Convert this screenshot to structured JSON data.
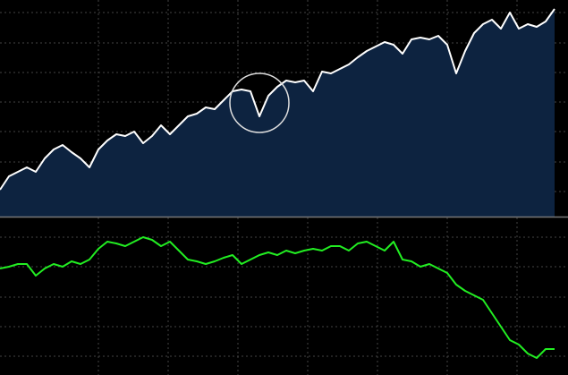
{
  "chart_data": [
    {
      "type": "area",
      "color": "#ffffff",
      "fill": "#0d2340",
      "grid": true,
      "xlim": [
        0,
        62
      ],
      "ylim": [
        0,
        121
      ],
      "xticks": [
        11,
        18.8,
        26.6,
        34.4,
        42.2,
        50,
        57.8
      ],
      "yticks": [
        14,
        30.5,
        47.5,
        64,
        80.5,
        97,
        114
      ],
      "values": [
        15,
        22.5,
        25,
        27.5,
        25,
        32.5,
        37.5,
        40,
        36,
        32.5,
        27.5,
        37.5,
        42.5,
        46,
        45,
        47.5,
        41,
        45,
        51,
        46,
        51,
        56,
        57.5,
        61,
        60,
        65,
        70,
        71,
        70,
        56,
        67.5,
        72.5,
        76,
        75,
        76,
        70,
        81,
        80,
        82.5,
        85,
        89,
        92.5,
        95,
        97.5,
        96,
        91,
        99,
        100,
        99,
        101,
        96,
        80,
        92.5,
        102.5,
        107.5,
        110,
        105,
        114,
        105,
        107.5,
        106,
        109,
        116
      ]
    },
    {
      "type": "line",
      "color": "#22ee22",
      "grid": true,
      "xlim": [
        0,
        62
      ],
      "ylim": [
        0,
        88
      ],
      "xticks": [
        11,
        18.8,
        26.6,
        34.4,
        42.2,
        50,
        57.8
      ],
      "yticks": [
        10.5,
        27,
        43.5,
        60.5,
        77
      ],
      "values": [
        59.5,
        60.5,
        62,
        62,
        55.5,
        59.5,
        62,
        60.5,
        63.5,
        62,
        64.5,
        70.5,
        74.5,
        73.5,
        72,
        74.5,
        77,
        75.5,
        72,
        74.5,
        69.5,
        64.5,
        63.5,
        62,
        63.5,
        65.5,
        67,
        62,
        64.5,
        67,
        68.5,
        67,
        69.5,
        68,
        69.5,
        70.5,
        69.5,
        72,
        72,
        69.5,
        73.5,
        74.5,
        72,
        69.5,
        74.5,
        64.5,
        63.5,
        60.5,
        62,
        59.5,
        57,
        50.5,
        47,
        44.5,
        42,
        34.5,
        27,
        19.5,
        17,
        12,
        9.5,
        14.5,
        14.5
      ]
    }
  ]
}
